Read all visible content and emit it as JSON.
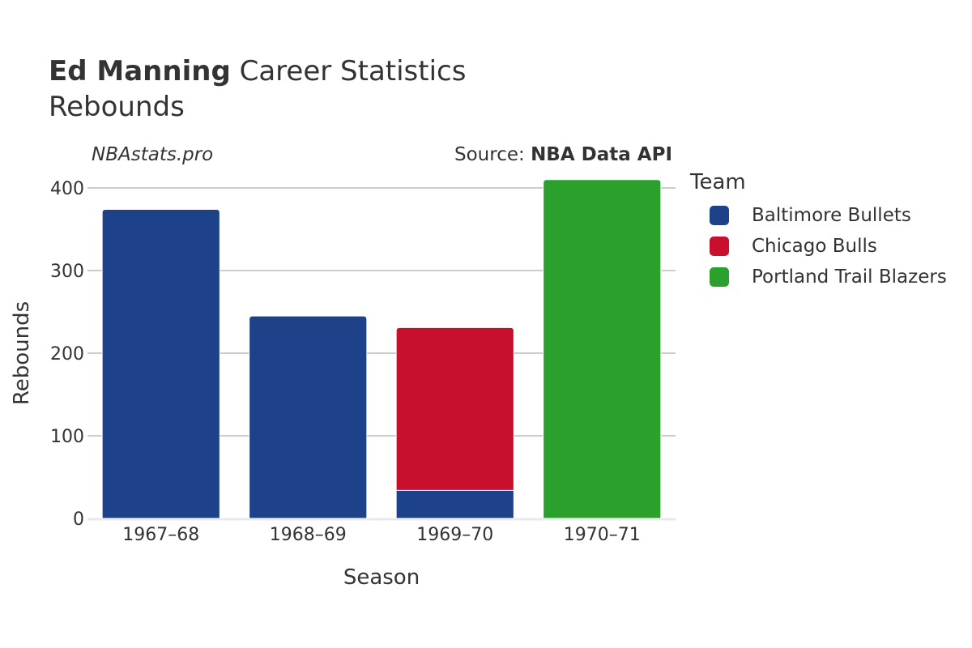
{
  "header": {
    "title_bold": "Ed Manning",
    "title_rest": " Career Statistics",
    "subtitle": "Rebounds",
    "watermark": "NBAstats.pro",
    "source_prefix": "Source: ",
    "source_bold": "NBA Data API"
  },
  "legend": {
    "title": "Team",
    "items": [
      {
        "label": "Baltimore Bullets",
        "color": "#1d428a"
      },
      {
        "label": "Chicago Bulls",
        "color": "#c8102e"
      },
      {
        "label": "Portland Trail Blazers",
        "color": "#2ca02c"
      }
    ]
  },
  "chart_data": {
    "type": "bar",
    "stacked": true,
    "title": "Ed Manning Career Statistics",
    "subtitle": "Rebounds",
    "xlabel": "Season",
    "ylabel": "Rebounds",
    "categories": [
      "1967–68",
      "1968–69",
      "1969–70",
      "1970–71"
    ],
    "ylim": [
      0,
      400
    ],
    "yticks": [
      0,
      100,
      200,
      300,
      400
    ],
    "grid": true,
    "legend_position": "right",
    "series": [
      {
        "name": "Baltimore Bullets",
        "color": "#1d428a",
        "values": [
          374,
          245,
          34,
          0
        ]
      },
      {
        "name": "Chicago Bulls",
        "color": "#c8102e",
        "values": [
          0,
          0,
          197,
          0
        ]
      },
      {
        "name": "Portland Trail Blazers",
        "color": "#2ca02c",
        "values": [
          0,
          0,
          0,
          410
        ]
      }
    ]
  }
}
